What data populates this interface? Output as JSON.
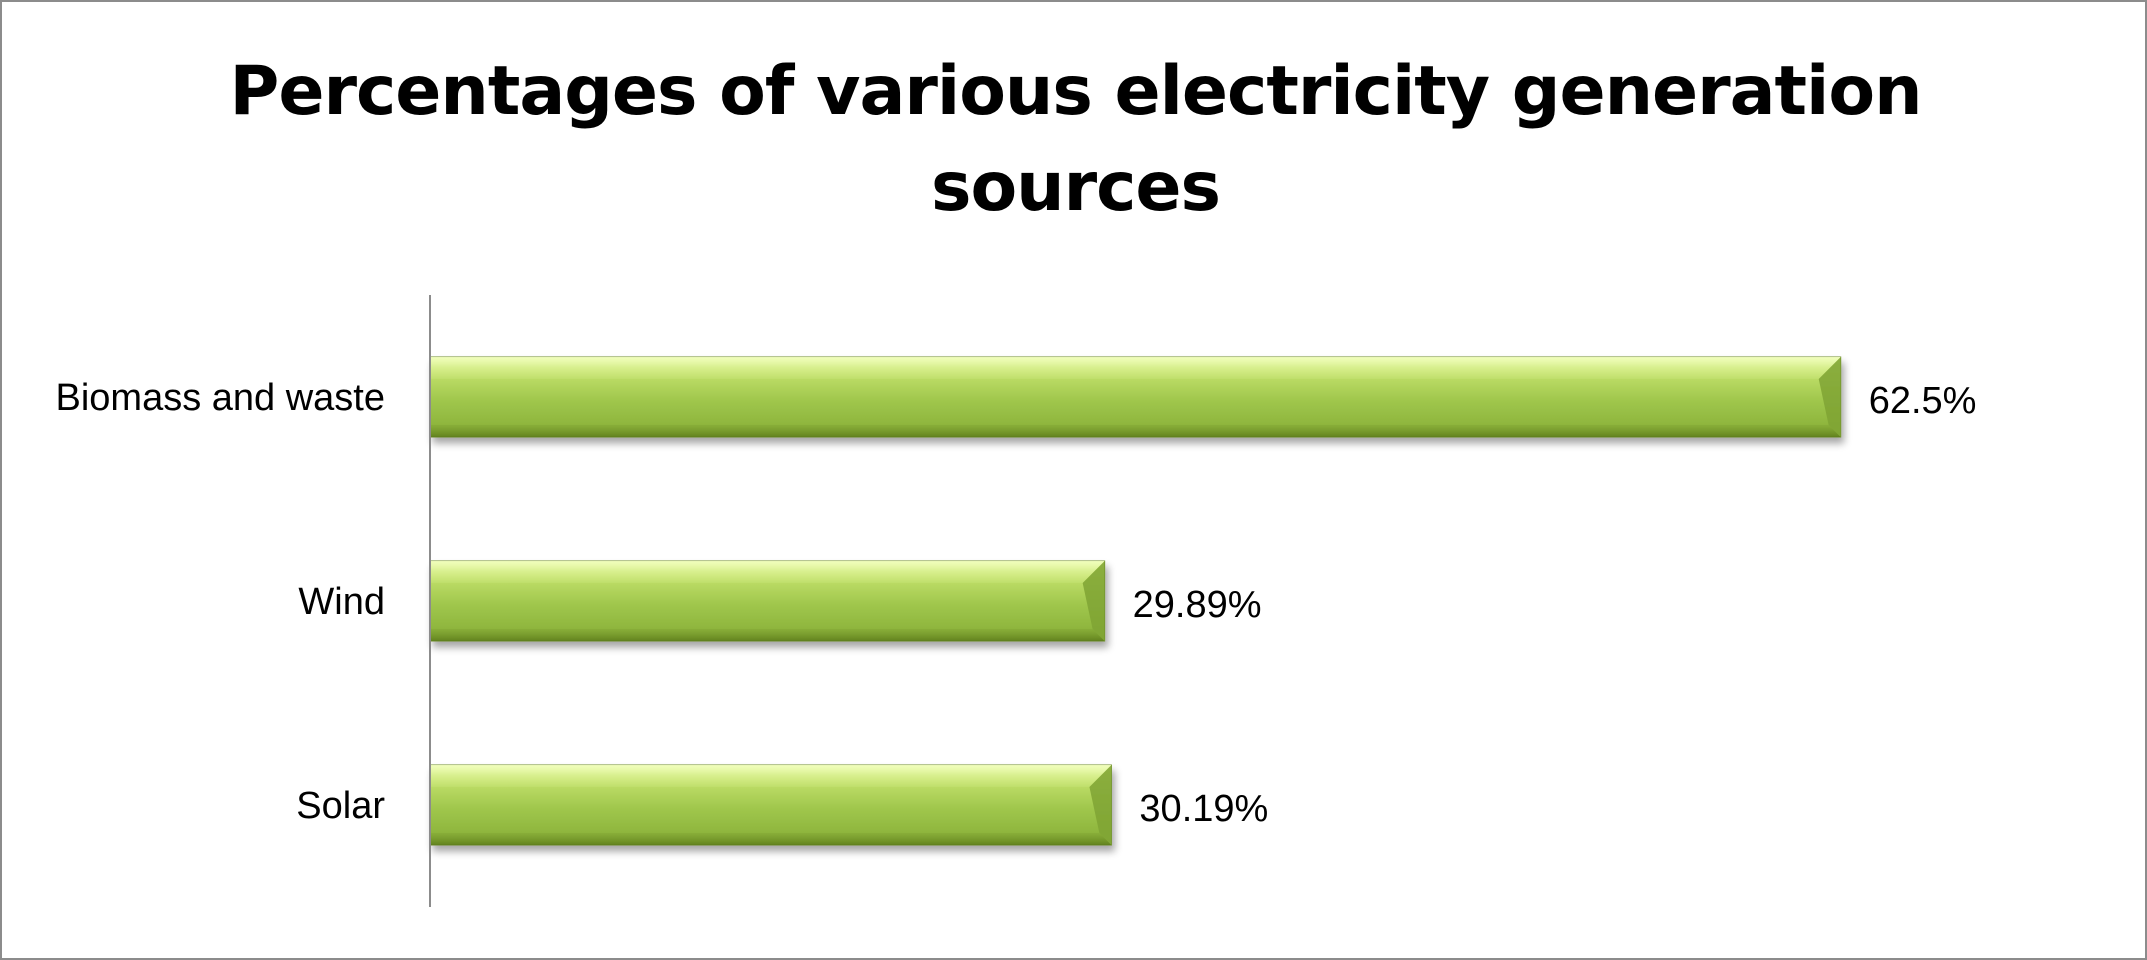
{
  "chart_data": {
    "type": "bar",
    "orientation": "horizontal",
    "title": "Percentages of various electricity generation sources",
    "categories": [
      "Biomass and waste",
      "Wind",
      "Solar"
    ],
    "values": [
      62.5,
      29.89,
      30.19
    ],
    "data_labels": [
      "62.5%",
      "29.89%",
      "30.19%"
    ],
    "xlim": [
      0,
      70
    ],
    "grid": false,
    "legend": "none",
    "bar_color": "#9bc34b",
    "bar_highlight_color": "#d9f08a",
    "bar_shadow_color": "#6f8f2c"
  }
}
